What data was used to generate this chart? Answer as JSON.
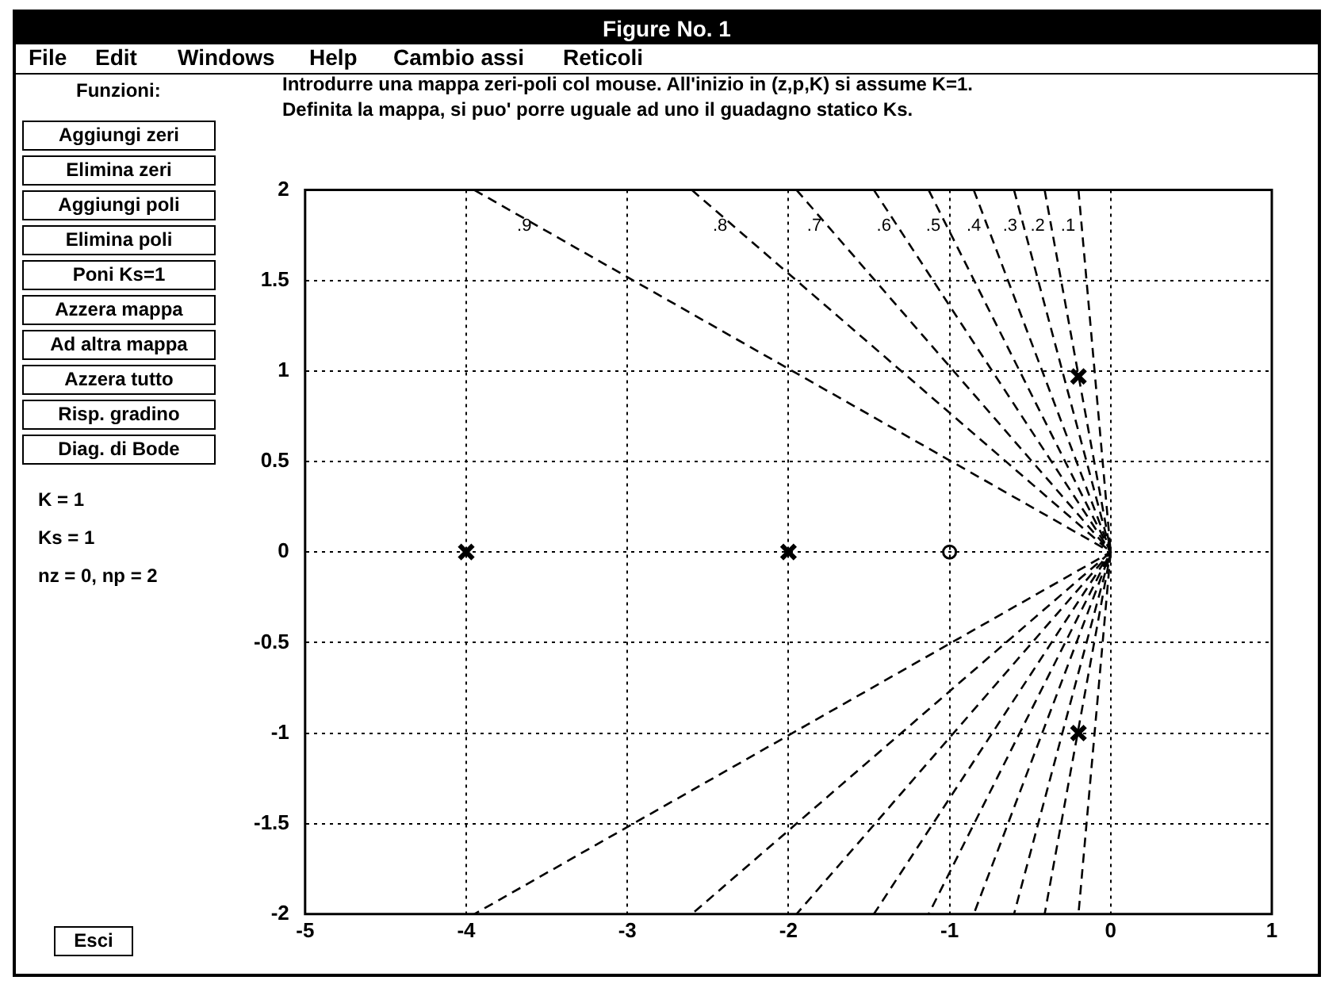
{
  "chart_data": {
    "type": "scatter",
    "title": "Figure No. 1",
    "xlim": [
      -5,
      1
    ],
    "xticks": [
      -5,
      -4,
      -3,
      -2,
      -1,
      0,
      1
    ],
    "ylim": [
      -2,
      2
    ],
    "yticks": [
      -2,
      -1.5,
      -1,
      -0.5,
      0,
      0.5,
      1,
      1.5,
      2
    ],
    "grid": true,
    "legend": false,
    "series": [
      {
        "type": "scatter",
        "color": "#000000",
        "marker": "cross",
        "x": [
          -4,
          -2,
          -0.2,
          -0.2
        ],
        "values": [
          0,
          0,
          0.97,
          -1
        ]
      },
      {
        "type": "scatter",
        "color": "#000000",
        "marker": "circle",
        "x": [
          -1
        ],
        "values": [
          0
        ]
      },
      {
        "type": "line",
        "name": ".9",
        "color": "#000000",
        "marker": "none",
        "line_style": "dashed",
        "x": [
          -3.95,
          0,
          -3.95
        ],
        "values": [
          2,
          0,
          -2
        ]
      },
      {
        "type": "line",
        "name": ".8",
        "color": "#000000",
        "marker": "none",
        "line_style": "dashed",
        "x": [
          -2.6,
          0,
          -2.6
        ],
        "values": [
          2,
          0,
          -2
        ]
      },
      {
        "type": "line",
        "name": ".7",
        "color": "#000000",
        "marker": "none",
        "line_style": "dashed",
        "x": [
          -1.95,
          0,
          -1.95
        ],
        "values": [
          2,
          0,
          -2
        ]
      },
      {
        "type": "line",
        "name": ".6",
        "color": "#000000",
        "marker": "none",
        "line_style": "dashed",
        "x": [
          -1.47,
          0,
          -1.47
        ],
        "values": [
          2,
          0,
          -2
        ]
      },
      {
        "type": "line",
        "name": ".5",
        "color": "#000000",
        "marker": "none",
        "line_style": "dashed",
        "x": [
          -1.13,
          0,
          -1.13
        ],
        "values": [
          2,
          0,
          -2
        ]
      },
      {
        "type": "line",
        "name": ".4",
        "color": "#000000",
        "marker": "none",
        "line_style": "dashed",
        "x": [
          -0.85,
          0,
          -0.85
        ],
        "values": [
          2,
          0,
          -2
        ]
      },
      {
        "type": "line",
        "name": ".3",
        "color": "#000000",
        "marker": "none",
        "line_style": "dashed",
        "x": [
          -0.6,
          0,
          -0.6
        ],
        "values": [
          2,
          0,
          -2
        ]
      },
      {
        "type": "line",
        "name": ".2",
        "color": "#000000",
        "marker": "none",
        "line_style": "dashed",
        "x": [
          -0.41,
          0,
          -0.41
        ],
        "values": [
          2,
          0,
          -2
        ]
      },
      {
        "type": "line",
        "name": ".1",
        "color": "#000000",
        "marker": "none",
        "line_style": "dashed",
        "x": [
          -0.2,
          0,
          -0.2
        ],
        "values": [
          2,
          0,
          -2
        ]
      }
    ],
    "annotations": [
      "File",
      "Edit",
      "Windows",
      "Help",
      "Cambio assi",
      "Reticoli",
      "Funzioni:",
      "Introdurre una mappa zeri-poli col mouse. All'inizio in (z,p,K) si assume K=1.",
      "Definita la mappa, si puo' porre uguale ad uno il guadagno statico Ks.",
      "Aggiungi zeri",
      "Elimina zeri",
      "Aggiungi poli",
      "Elimina poli",
      "Poni Ks=1",
      "Azzera mappa",
      "Ad altra mappa",
      "Azzera tutto",
      "Risp. gradino",
      "Diag. di Bode",
      "K = 1",
      "Ks = 1",
      "nz = 0, np = 2",
      "Esci"
    ]
  }
}
